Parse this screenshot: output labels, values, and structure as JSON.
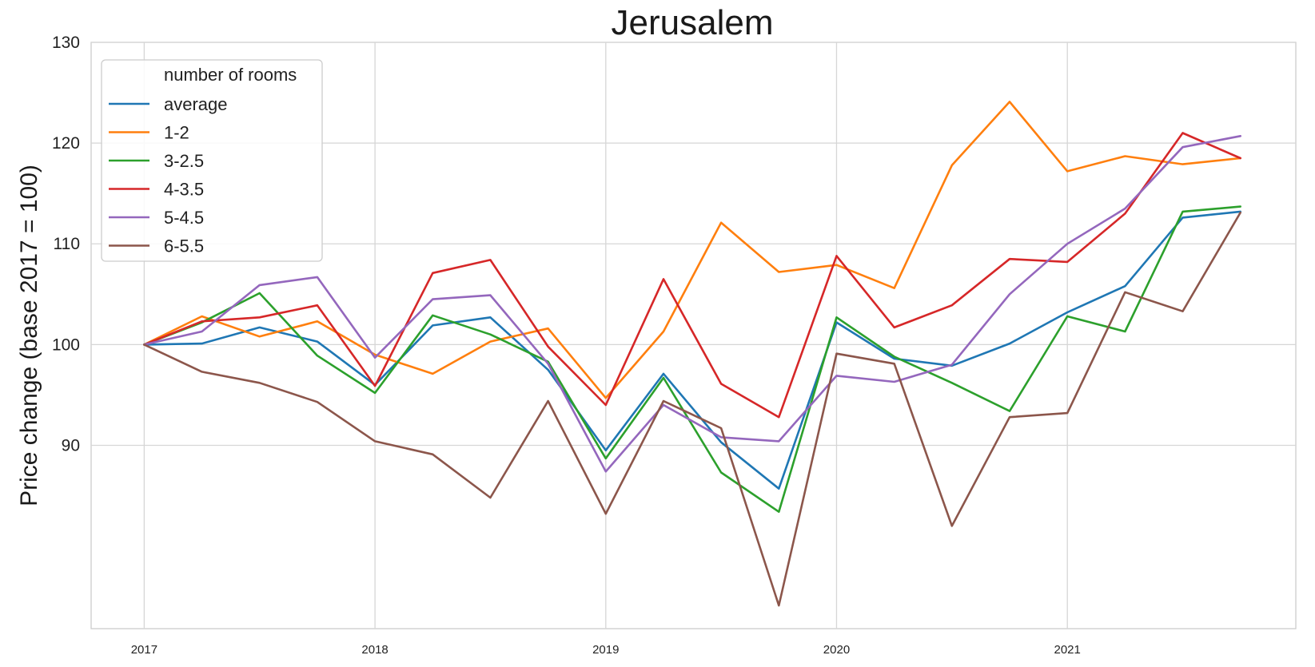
{
  "chart_data": {
    "type": "line",
    "title": "Jerusalem",
    "xlabel": "",
    "ylabel": "Price change (base 2017 = 100)",
    "x": [
      2017.0,
      2017.25,
      2017.5,
      2017.75,
      2018.0,
      2018.25,
      2018.5,
      2018.75,
      2019.0,
      2019.25,
      2019.5,
      2019.75,
      2020.0,
      2020.25,
      2020.5,
      2020.75,
      2021.0,
      2021.25,
      2021.5,
      2021.75
    ],
    "x_ticks": [
      2017,
      2018,
      2019,
      2020,
      2021
    ],
    "x_tick_labels": [
      "2017",
      "2018",
      "2019",
      "2020",
      "2021"
    ],
    "xlim": [
      2016.77,
      2021.99
    ],
    "y_ticks": [
      90,
      100,
      110,
      120,
      130
    ],
    "y_tick_labels": [
      "90",
      "100",
      "110",
      "120",
      "130"
    ],
    "ylim": [
      71.8,
      130
    ],
    "grid": true,
    "legend": {
      "title": "number of rooms",
      "placement": "top-left"
    },
    "series": [
      {
        "name": "average",
        "color": "#1f77b4",
        "values": [
          100,
          100.1,
          101.7,
          100.3,
          96.0,
          101.9,
          102.7,
          97.5,
          89.5,
          97.1,
          90.3,
          85.7,
          102.2,
          98.6,
          97.9,
          100.1,
          103.2,
          105.8,
          112.6,
          113.2
        ]
      },
      {
        "name": "1-2",
        "color": "#ff7f0e",
        "values": [
          100,
          102.8,
          100.8,
          102.3,
          99.0,
          97.1,
          100.3,
          101.6,
          94.7,
          101.3,
          112.1,
          107.2,
          107.9,
          105.6,
          117.8,
          124.1,
          117.2,
          118.7,
          117.9,
          118.5
        ]
      },
      {
        "name": "3-2.5",
        "color": "#2ca02c",
        "values": [
          100,
          102.2,
          105.1,
          98.9,
          95.2,
          102.9,
          101.0,
          98.3,
          88.7,
          96.7,
          87.3,
          83.4,
          102.7,
          98.8,
          96.2,
          93.4,
          102.8,
          101.3,
          113.2,
          113.7
        ]
      },
      {
        "name": "4-3.5",
        "color": "#d62728",
        "values": [
          100,
          102.3,
          102.7,
          103.9,
          95.9,
          107.1,
          108.4,
          99.8,
          94.0,
          106.5,
          96.1,
          92.8,
          108.8,
          101.7,
          103.9,
          108.5,
          108.2,
          113.0,
          121.0,
          118.5
        ]
      },
      {
        "name": "5-4.5",
        "color": "#9467bd",
        "values": [
          100,
          101.3,
          105.9,
          106.7,
          98.7,
          104.5,
          104.9,
          98.1,
          87.4,
          94.0,
          90.8,
          90.4,
          96.9,
          96.3,
          98.0,
          105.0,
          110.0,
          113.5,
          119.6,
          120.7
        ]
      },
      {
        "name": "6-5.5",
        "color": "#8c564b",
        "values": [
          100,
          97.3,
          96.2,
          94.3,
          90.4,
          89.1,
          84.8,
          94.4,
          83.2,
          94.4,
          91.7,
          74.1,
          99.1,
          98.1,
          82.0,
          92.8,
          93.2,
          105.2,
          103.3,
          113.1
        ]
      }
    ]
  }
}
